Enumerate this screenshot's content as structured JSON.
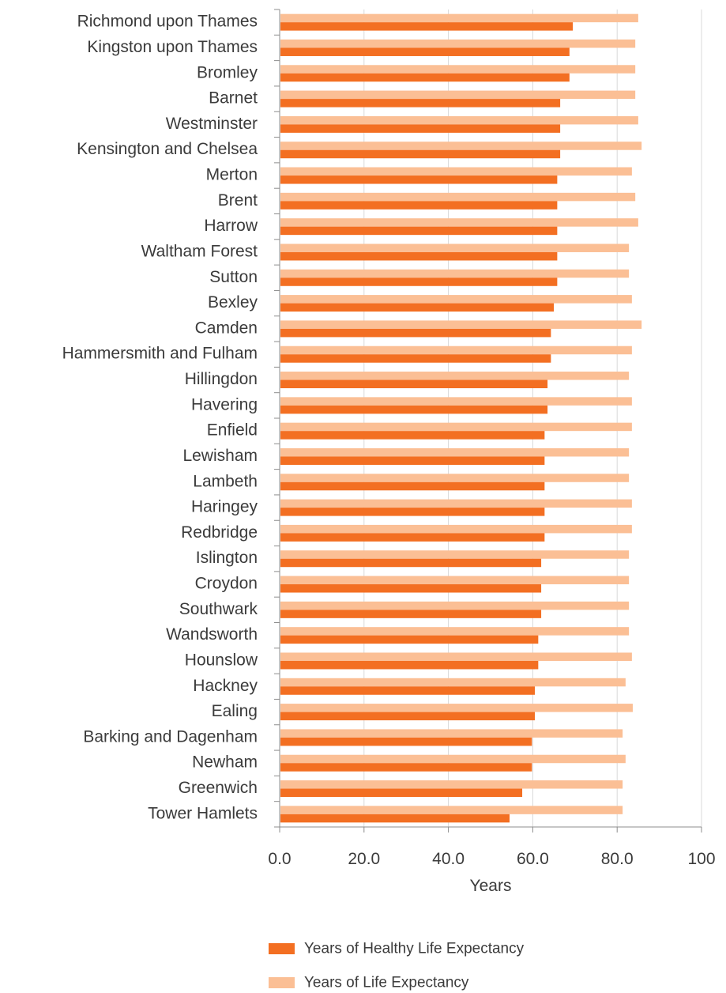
{
  "chart_data": {
    "type": "bar",
    "orientation": "horizontal",
    "xlabel": "Years",
    "ylabel": "",
    "xlim": [
      0,
      100
    ],
    "xticks": [
      "0.0",
      "20.0",
      "40.0",
      "60.0",
      "80.0",
      "100"
    ],
    "grid": "vertical",
    "legend_position": "bottom",
    "categories": [
      "Richmond upon Thames",
      "Kingston upon Thames",
      "Bromley",
      "Barnet",
      "Westminster",
      "Kensington and Chelsea",
      "Merton",
      "Brent",
      "Harrow",
      "Waltham Forest",
      "Sutton",
      "Bexley",
      "Camden",
      "Hammersmith and Fulham",
      "Hillingdon",
      "Havering",
      "Enfield",
      "Lewisham",
      "Lambeth",
      "Haringey",
      "Redbridge",
      "Islington",
      "Croydon",
      "Southwark",
      "Wandsworth",
      "Hounslow",
      "Hackney",
      "Ealing",
      "Barking and Dagenham",
      "Newham",
      "Greenwich",
      "Tower Hamlets"
    ],
    "series": [
      {
        "name": "Years of Life Expectancy",
        "color": "#fbbf95",
        "values": [
          85.0,
          84.3,
          84.3,
          84.3,
          85.0,
          85.8,
          83.5,
          84.3,
          85.0,
          82.8,
          82.8,
          83.5,
          85.8,
          83.5,
          82.8,
          83.5,
          83.5,
          82.8,
          82.8,
          83.5,
          83.5,
          82.8,
          82.8,
          82.8,
          82.8,
          83.5,
          82.0,
          83.7,
          81.3,
          82.0,
          81.3,
          81.3
        ]
      },
      {
        "name": "Years of Healthy Life Expectancy",
        "color": "#f36f22",
        "values": [
          69.5,
          68.7,
          68.7,
          66.5,
          66.5,
          66.5,
          65.8,
          65.8,
          65.8,
          65.8,
          65.8,
          65.0,
          64.3,
          64.3,
          63.5,
          63.5,
          62.8,
          62.8,
          62.8,
          62.8,
          62.8,
          62.0,
          62.0,
          62.0,
          61.3,
          61.3,
          60.5,
          60.5,
          59.8,
          59.8,
          57.5,
          54.5
        ]
      }
    ]
  }
}
